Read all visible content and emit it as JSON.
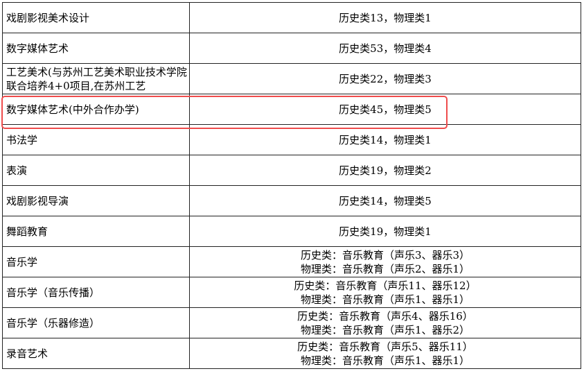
{
  "rows": [
    {
      "major": "戏剧影视美术设计",
      "plan": [
        "历史类13，物理类1"
      ]
    },
    {
      "major": "数字媒体艺术",
      "plan": [
        "历史类53，物理类4"
      ]
    },
    {
      "major": "工艺美术(与苏州工艺美术职业技术学院联合培养4+0项目,在苏州工艺",
      "plan": [
        "历史类22，物理类3"
      ]
    },
    {
      "major": "数字媒体艺术(中外合作办学)",
      "plan": [
        "历史类45，物理类5"
      ],
      "highlighted": true
    },
    {
      "major": "书法学",
      "plan": [
        "历史类14，物理类1"
      ]
    },
    {
      "major": "表演",
      "plan": [
        "历史类19，物理类2"
      ]
    },
    {
      "major": "戏剧影视导演",
      "plan": [
        "历史类14，物理类5"
      ]
    },
    {
      "major": "舞蹈教育",
      "plan": [
        "历史类19，物理类1"
      ]
    },
    {
      "major": "音乐学",
      "plan": [
        "历史类：音乐教育（声乐3、器乐3）",
        "物理类：音乐教育（声乐2、器乐1）"
      ]
    },
    {
      "major": "音乐学（音乐传播）",
      "plan": [
        "历史类：音乐教育（声乐11、器乐12）",
        "物理类：音乐教育（声乐1、器乐1）"
      ]
    },
    {
      "major": "音乐学（乐器修造）",
      "plan": [
        "历史类：音乐教育（声乐4、器乐16）",
        "物理类：音乐教育（声乐1、器乐2）"
      ]
    },
    {
      "major": "录音艺术",
      "plan": [
        "历史类：音乐教育（声乐5、器乐11）",
        "物理类：音乐教育（声乐1、器乐1）"
      ]
    }
  ],
  "highlight_color": "#ef4b4b"
}
